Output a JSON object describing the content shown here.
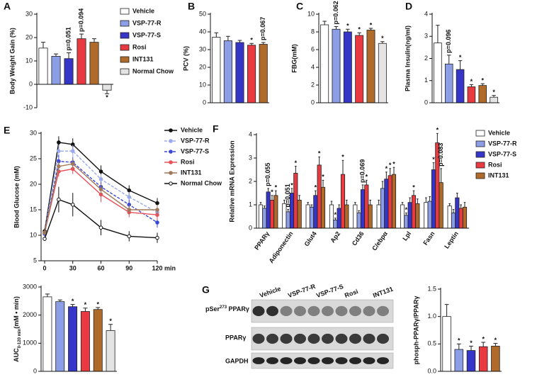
{
  "chart_data": [
    {
      "type": "bar",
      "panel": "A",
      "ylabel": "Body Weight Gain (%)",
      "categories": [
        "Vehicle",
        "VSP-77-R",
        "VSP-77-S",
        "Rosi",
        "INT131",
        "Normal Chow"
      ],
      "values": [
        15.5,
        12,
        11,
        19.5,
        18,
        -2.5
      ],
      "errors": [
        2.5,
        1,
        2.5,
        2,
        1.5,
        1.5
      ],
      "annotations": [
        null,
        null,
        "p=0.051",
        "p=0.094",
        null,
        "*"
      ],
      "colors": [
        "#ffffff",
        "#8c9ee6",
        "#3535c8",
        "#e83a40",
        "#b06a2a",
        "#e4e4e4"
      ],
      "ylim": [
        -10,
        30
      ],
      "yticks": [
        -10,
        0,
        10,
        20,
        30
      ],
      "legend": "right"
    },
    {
      "type": "bar",
      "panel": "B",
      "ylabel": "PCV (%)",
      "values": [
        37,
        35,
        34,
        32.5,
        33
      ],
      "errors": [
        2.5,
        2.5,
        1.2,
        1,
        1
      ],
      "annotations": [
        null,
        null,
        null,
        "*",
        "p=0.067"
      ],
      "colors": [
        "#ffffff",
        "#8c9ee6",
        "#3535c8",
        "#e83a40",
        "#b06a2a"
      ],
      "ylim": [
        0,
        50
      ],
      "yticks": [
        0,
        10,
        20,
        30,
        40,
        50
      ]
    },
    {
      "type": "bar",
      "panel": "C",
      "ylabel": "FBG(mM)",
      "values": [
        8.8,
        8.3,
        8.0,
        7.6,
        8.2,
        6.7
      ],
      "errors": [
        0.4,
        0.3,
        0.3,
        0.3,
        0.2,
        0.2
      ],
      "annotations": [
        null,
        "p=0.062",
        "*",
        "*",
        "*",
        "*"
      ],
      "colors": [
        "#ffffff",
        "#8c9ee6",
        "#3535c8",
        "#e83a40",
        "#b06a2a",
        "#e4e4e4"
      ],
      "ylim": [
        0,
        10
      ],
      "yticks": [
        0,
        2,
        4,
        6,
        8,
        10
      ]
    },
    {
      "type": "bar",
      "panel": "D",
      "ylabel": "Plasma Insulin(ng/ml)",
      "values": [
        2.7,
        1.75,
        1.5,
        0.72,
        0.78,
        0.25
      ],
      "errors": [
        0.8,
        0.4,
        0.4,
        0.1,
        0.08,
        0.08
      ],
      "annotations": [
        null,
        "p=0.096",
        "*",
        "*",
        "*",
        "*"
      ],
      "colors": [
        "#ffffff",
        "#8c9ee6",
        "#3535c8",
        "#e83a40",
        "#b06a2a",
        "#e4e4e4"
      ],
      "ylim": [
        0,
        4
      ],
      "yticks": [
        0,
        1,
        2,
        3,
        4
      ]
    },
    {
      "type": "line",
      "panel": "E",
      "ylabel": "Blood Glucose (mM)",
      "xlabel": "min",
      "x": [
        0,
        15,
        30,
        60,
        90,
        120
      ],
      "xlim": [
        0,
        120
      ],
      "xticks": [
        0,
        30,
        60,
        90,
        120
      ],
      "ylim": [
        5,
        30
      ],
      "yticks": [
        5,
        10,
        15,
        20,
        25,
        30
      ],
      "legend": "right",
      "series": [
        {
          "name": "Vehicle",
          "color": "#111111",
          "dashed": false,
          "open": false,
          "values": [
            10.8,
            28.2,
            27.8,
            22.5,
            18.8,
            16.3
          ],
          "errors": [
            0.5,
            1.2,
            1.2,
            1.2,
            1,
            1
          ]
        },
        {
          "name": "VSP-77-R",
          "color": "#9aa8ee",
          "dashed": true,
          "open": false,
          "values": [
            10.5,
            26.5,
            26.5,
            21,
            17.5,
            14.5
          ],
          "errors": [
            0.5,
            1.2,
            1.2,
            1,
            1,
            1
          ]
        },
        {
          "name": "VSP-77-S",
          "color": "#3a48d8",
          "dashed": true,
          "open": false,
          "values": [
            10.3,
            24.5,
            24.3,
            19.5,
            16,
            12.5
          ],
          "errors": [
            0.5,
            1.2,
            1,
            1,
            1,
            1
          ]
        },
        {
          "name": "Rosi",
          "color": "#e8505a",
          "dashed": false,
          "open": false,
          "values": [
            10.5,
            22.5,
            23,
            18,
            14.5,
            14
          ],
          "errors": [
            0.5,
            1,
            1,
            1.5,
            1,
            1
          ]
        },
        {
          "name": "INT131",
          "color": "#a0785a",
          "dashed": false,
          "open": false,
          "values": [
            10.5,
            23.5,
            24,
            19,
            15,
            15
          ],
          "errors": [
            0.5,
            1,
            1,
            1,
            1,
            1
          ]
        },
        {
          "name": "Normal Chow",
          "color": "#111111",
          "dashed": false,
          "open": true,
          "values": [
            9.3,
            17,
            16,
            11.5,
            9.8,
            9.5
          ],
          "errors": [
            0.4,
            2.5,
            2.3,
            1.5,
            1,
            1
          ]
        }
      ]
    },
    {
      "type": "bar",
      "ylabel_main": "AUC",
      "ylabel_sub": "0-120 min",
      "ylabel_unit": "(mM • min)",
      "values": [
        2650,
        2480,
        2300,
        2130,
        2200,
        1450
      ],
      "errors": [
        100,
        60,
        80,
        120,
        70,
        220
      ],
      "annotations": [
        null,
        null,
        "*",
        "*",
        "*",
        "*"
      ],
      "colors": [
        "#ffffff",
        "#8c9ee6",
        "#3535c8",
        "#e83a40",
        "#b06a2a",
        "#e4e4e4"
      ],
      "ylim": [
        0,
        3000
      ],
      "yticks": [
        0,
        1000,
        2000,
        3000
      ]
    },
    {
      "type": "bar",
      "panel": "F",
      "ylabel": "Relative mRNA Expression",
      "categories": [
        "PPARγ",
        "Adiponectin",
        "Glut4",
        "Ap2",
        "Cd36",
        "C/ebpα",
        "Lpl",
        "Fasn",
        "Leptin"
      ],
      "ylim": [
        0,
        4
      ],
      "yticks": [
        0,
        1,
        2,
        3,
        4
      ],
      "legend": "right",
      "series": [
        {
          "name": "Vehicle",
          "color": "#ffffff",
          "values": [
            1.0,
            1.05,
            1.0,
            1.0,
            1.0,
            1.0,
            1.0,
            1.1,
            0.95
          ],
          "errors": [
            0.1,
            0.15,
            0.1,
            0.15,
            0.1,
            0.2,
            0.1,
            0.2,
            0.1
          ],
          "annotations": [
            null,
            null,
            null,
            null,
            null,
            null,
            null,
            null,
            null
          ]
        },
        {
          "name": "VSP-77-R",
          "color": "#8c9ee6",
          "values": [
            0.85,
            0.7,
            0.9,
            0.35,
            0.65,
            1.7,
            0.55,
            1.15,
            0.65
          ],
          "errors": [
            0.1,
            0.1,
            0.1,
            0.08,
            0.1,
            0.3,
            0.1,
            0.2,
            0.15
          ],
          "annotations": [
            null,
            "p=0.051",
            null,
            "*",
            null,
            null,
            "*",
            null,
            null
          ]
        },
        {
          "name": "VSP-77-S",
          "color": "#3535c8",
          "values": [
            1.55,
            1.5,
            1.4,
            0.85,
            1.65,
            2.1,
            1.1,
            2.5,
            1.3
          ],
          "errors": [
            0.15,
            0.2,
            0.2,
            0.15,
            0.2,
            0.3,
            0.2,
            0.3,
            0.2
          ],
          "annotations": [
            "p=0.055",
            "*",
            "*",
            null,
            "p=0.069",
            "*",
            null,
            "*",
            null
          ]
        },
        {
          "name": "Rosi",
          "color": "#e83a40",
          "values": [
            1.2,
            2.35,
            2.7,
            2.3,
            1.85,
            2.25,
            1.4,
            3.65,
            0.85
          ],
          "errors": [
            0.2,
            0.3,
            0.35,
            0.6,
            0.2,
            0.3,
            0.2,
            0.4,
            0.15
          ],
          "annotations": [
            "*",
            "*",
            "*",
            "*",
            "*",
            "*",
            "*",
            "*",
            null
          ]
        },
        {
          "name": "INT131",
          "color": "#b06a2a",
          "values": [
            1.4,
            1.2,
            1.75,
            1.0,
            1.0,
            2.3,
            1.05,
            1.95,
            0.9
          ],
          "errors": [
            0.2,
            0.2,
            0.3,
            0.2,
            0.2,
            0.3,
            0.2,
            0.6,
            0.2
          ],
          "annotations": [
            "*",
            null,
            "*",
            null,
            null,
            "*",
            null,
            "p=0.083",
            null
          ]
        }
      ]
    },
    {
      "type": "bar",
      "ylabel": "phosph-PPARγ/PPARγ",
      "values": [
        1.0,
        0.4,
        0.38,
        0.45,
        0.46
      ],
      "errors": [
        0.22,
        0.1,
        0.08,
        0.08,
        0.05
      ],
      "annotations": [
        null,
        "*",
        "*",
        "*",
        "*"
      ],
      "colors": [
        "#ffffff",
        "#8c9ee6",
        "#3535c8",
        "#e83a40",
        "#b06a2a"
      ],
      "ylim": [
        0,
        1.5
      ],
      "yticks": [
        {
          "value": 0,
          "label": "0.0"
        },
        {
          "value": 0.5,
          "label": "0.5"
        },
        {
          "value": 1.0,
          "label": "1.0"
        },
        {
          "value": 1.5,
          "label": "1.5"
        }
      ]
    }
  ],
  "blot": {
    "panel": "G",
    "lanes": [
      "Vehicle",
      "VSP-77-R",
      "VSP-77-S",
      "Rosi",
      "INT131"
    ],
    "row1": {
      "prefix": "pSer",
      "sup": "273",
      "suffix": " PPARγ"
    },
    "row2": "PPARγ",
    "row3": "GAPDH"
  }
}
